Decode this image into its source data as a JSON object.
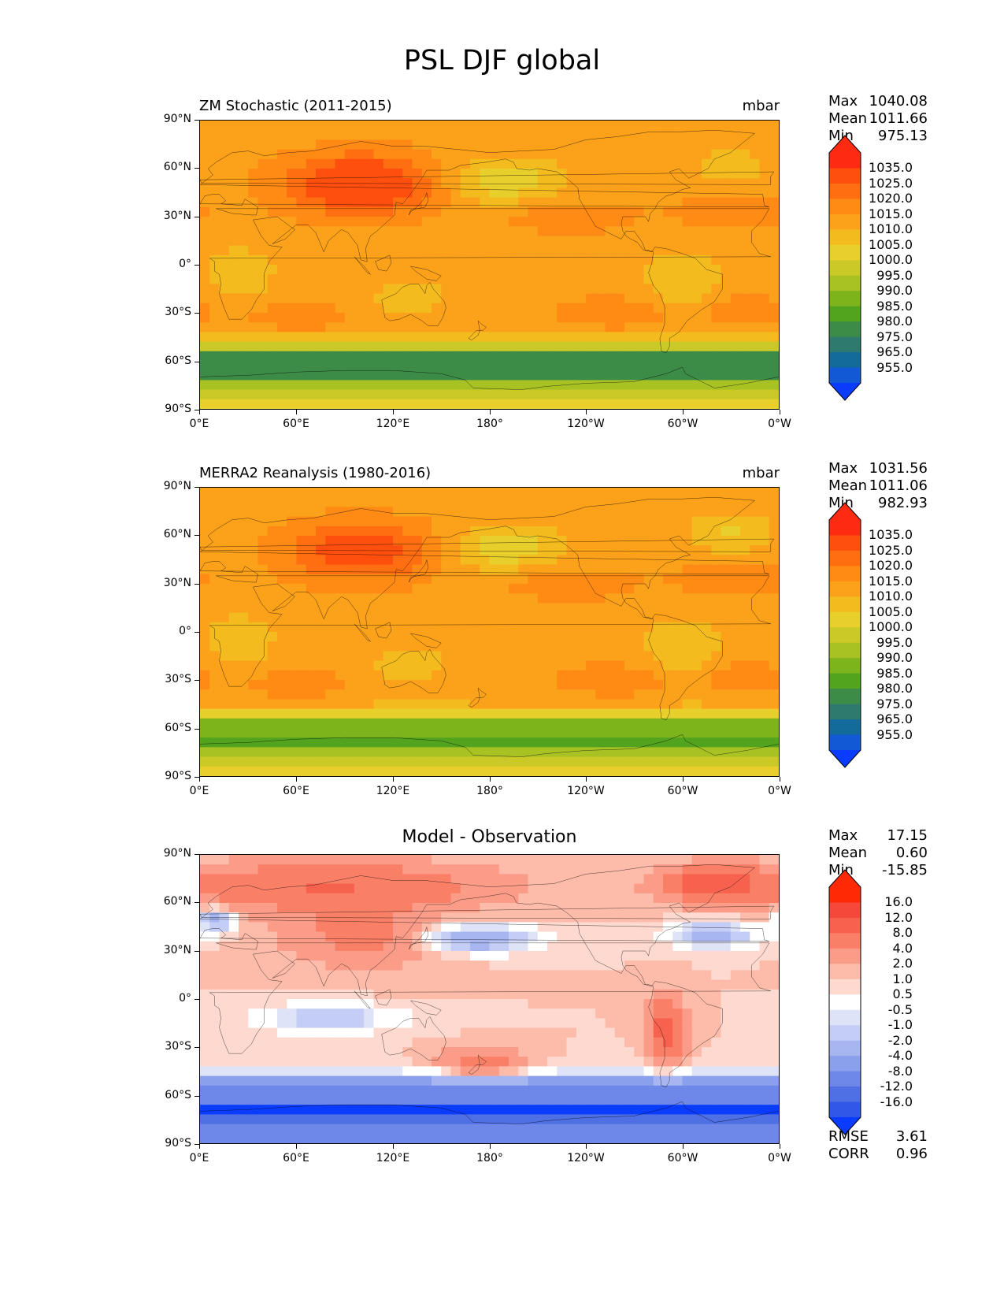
{
  "title": "PSL DJF global",
  "lat_ticks": [
    "90°N",
    "60°N",
    "30°N",
    "0°",
    "30°S",
    "60°S",
    "90°S"
  ],
  "lon_ticks": [
    "0°E",
    "60°E",
    "120°E",
    "180°",
    "120°W",
    "60°W",
    "0°W"
  ],
  "panels": [
    {
      "title_left": "ZM Stochastic (2011-2015)",
      "title_right": "mbar",
      "title_center": "",
      "stats": [
        {
          "label": "Max",
          "value": "1040.08"
        },
        {
          "label": "Mean",
          "value": "1011.66"
        },
        {
          "label": "Min",
          "value": "975.13"
        }
      ],
      "colorbar_levels": [
        "1035.0",
        "1025.0",
        "1020.0",
        "1015.0",
        "1010.0",
        "1005.0",
        "1000.0",
        "995.0",
        "990.0",
        "985.0",
        "980.0",
        "975.0",
        "965.0",
        "955.0"
      ],
      "colorbar_colors": [
        "#ff2a12",
        "#ff4f0e",
        "#ff6e10",
        "#ff8a14",
        "#fba11a",
        "#f3bb1e",
        "#e8cf2c",
        "#cbc928",
        "#a8c224",
        "#7db41c",
        "#52a41e",
        "#3c8c48",
        "#2e7a6e",
        "#136b9c",
        "#1259d6",
        "#0a3cff"
      ],
      "palette": "abs",
      "footer": []
    },
    {
      "title_left": "MERRA2 Reanalysis (1980-2016)",
      "title_right": "mbar",
      "title_center": "",
      "stats": [
        {
          "label": "Max",
          "value": "1031.56"
        },
        {
          "label": "Mean",
          "value": "1011.06"
        },
        {
          "label": "Min",
          "value": "982.93"
        }
      ],
      "colorbar_levels": [
        "1035.0",
        "1025.0",
        "1020.0",
        "1015.0",
        "1010.0",
        "1005.0",
        "1000.0",
        "995.0",
        "990.0",
        "985.0",
        "980.0",
        "975.0",
        "965.0",
        "955.0"
      ],
      "colorbar_colors": [
        "#ff2a12",
        "#ff4f0e",
        "#ff6e10",
        "#ff8a14",
        "#fba11a",
        "#f3bb1e",
        "#e8cf2c",
        "#cbc928",
        "#a8c224",
        "#7db41c",
        "#52a41e",
        "#3c8c48",
        "#2e7a6e",
        "#136b9c",
        "#1259d6",
        "#0a3cff"
      ],
      "palette": "abs",
      "footer": []
    },
    {
      "title_left": "",
      "title_right": "",
      "title_center": "Model - Observation",
      "stats": [
        {
          "label": "Max",
          "value": "17.15"
        },
        {
          "label": "Mean",
          "value": "0.60"
        },
        {
          "label": "Min",
          "value": "-15.85"
        }
      ],
      "colorbar_levels": [
        "16.0",
        "12.0",
        "8.0",
        "4.0",
        "2.0",
        "1.0",
        "0.5",
        "-0.5",
        "-1.0",
        "-2.0",
        "-4.0",
        "-8.0",
        "-12.0",
        "-16.0"
      ],
      "colorbar_colors": [
        "#ff2a05",
        "#f5473a",
        "#f7624f",
        "#f98067",
        "#fb9c88",
        "#fdbbaa",
        "#fed9cf",
        "#ffffff",
        "#dfe3f8",
        "#c4cdf5",
        "#a7b6f1",
        "#8aa0ec",
        "#6d88e8",
        "#4f6fe4",
        "#3058e8",
        "#0a3cff"
      ],
      "palette": "diff",
      "footer": [
        {
          "label": "RMSE",
          "value": "3.61"
        },
        {
          "label": "CORR",
          "value": "0.96"
        }
      ]
    }
  ]
}
